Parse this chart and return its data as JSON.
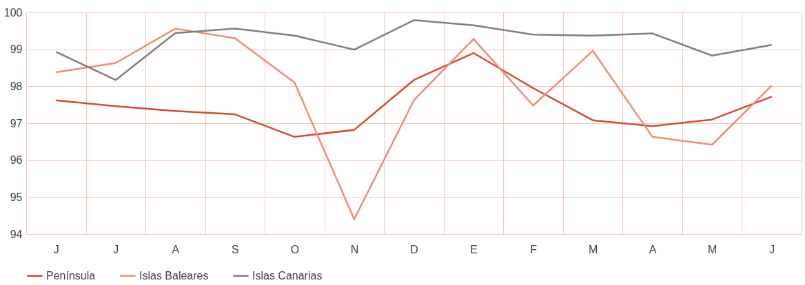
{
  "chart_data": {
    "type": "line",
    "categories": [
      "J",
      "J",
      "A",
      "S",
      "O",
      "N",
      "D",
      "E",
      "F",
      "M",
      "A",
      "M",
      "J"
    ],
    "series": [
      {
        "name": "Península",
        "color": "#d24b35",
        "values": [
          97.62,
          97.46,
          97.33,
          97.24,
          96.63,
          96.82,
          98.17,
          98.9,
          97.95,
          97.08,
          96.92,
          97.1,
          97.72
        ]
      },
      {
        "name": "Islas Baleares",
        "color": "#f08c74",
        "values": [
          98.38,
          98.63,
          99.56,
          99.3,
          98.1,
          94.4,
          97.62,
          99.28,
          97.48,
          98.96,
          96.63,
          96.42,
          98.02
        ]
      },
      {
        "name": "Islas Canarias",
        "color": "#7f7f7f",
        "values": [
          98.93,
          98.17,
          99.44,
          99.56,
          99.37,
          98.99,
          99.79,
          99.65,
          99.4,
          99.37,
          99.43,
          98.83,
          99.12
        ]
      }
    ],
    "ylim": [
      94,
      100
    ],
    "yticks": [
      94,
      95,
      96,
      97,
      98,
      99,
      100
    ],
    "grid": true,
    "legend": "bottom",
    "marker": "none",
    "line_style": "solid"
  }
}
